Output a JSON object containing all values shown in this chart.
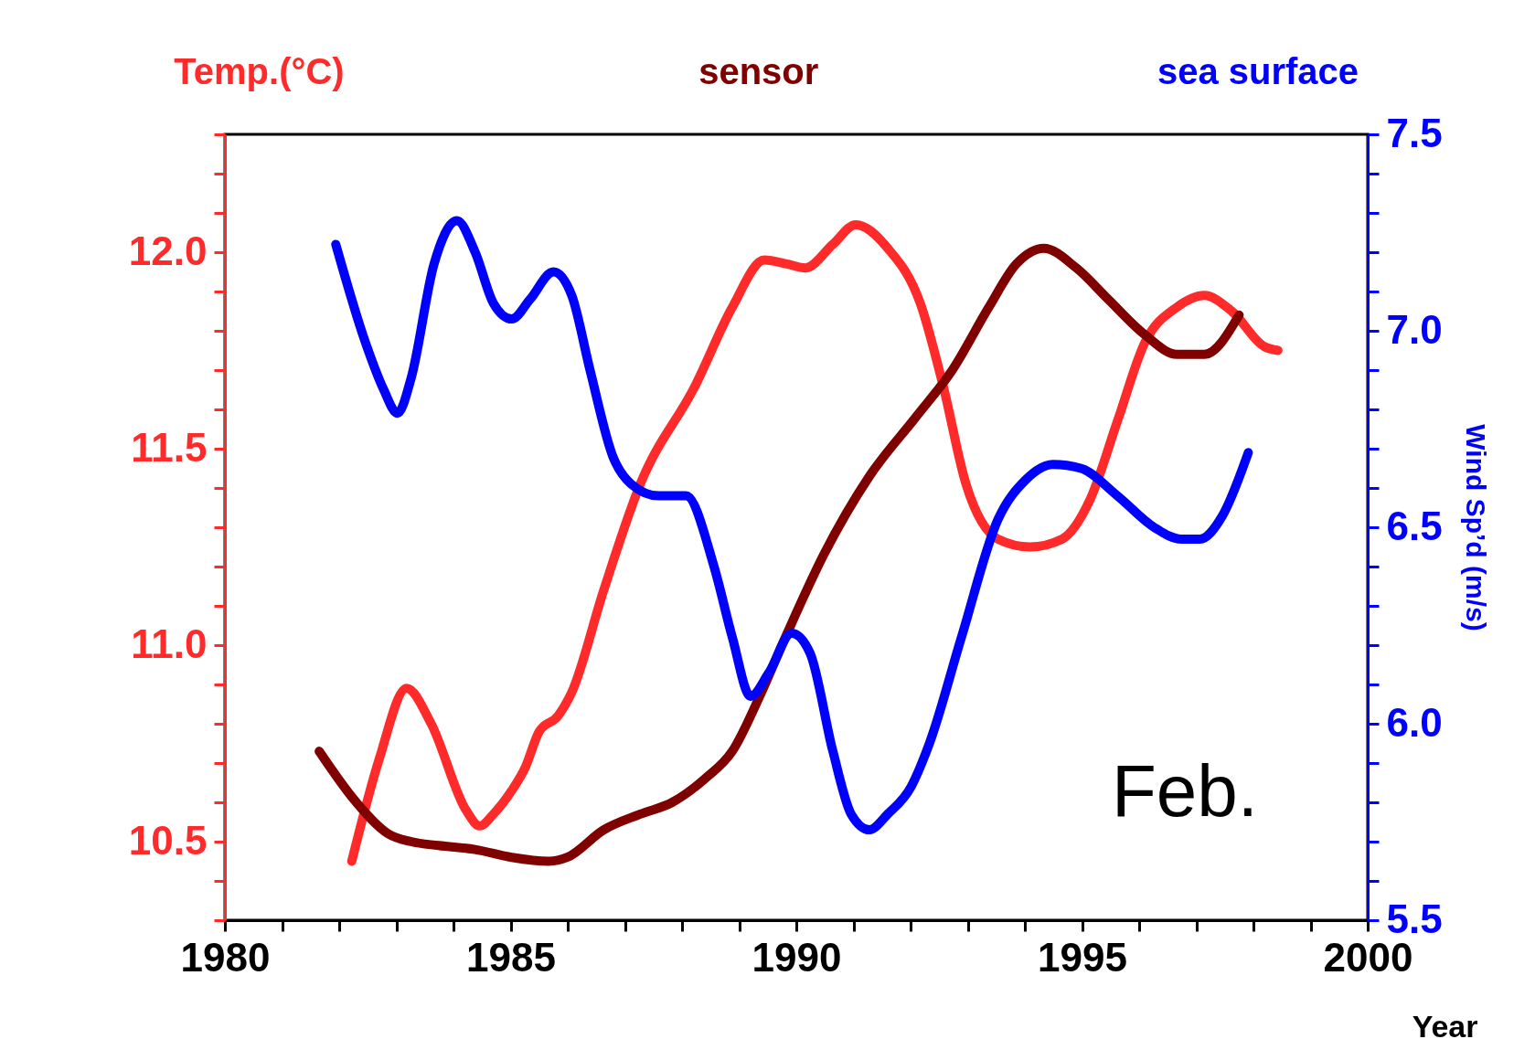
{
  "chart_data": {
    "type": "line",
    "xlabel": "Year",
    "y2label": "Wind Sp’d (m/s)",
    "annotations": [
      "Feb."
    ],
    "legend": "top",
    "line_style": "solid",
    "marker": "none",
    "grid": false,
    "xlim": [
      1980,
      2000
    ],
    "xticks": [
      1980,
      {
        "value": 1981,
        "label": null
      },
      {
        "value": 1982,
        "label": null
      },
      {
        "value": 1983,
        "label": null
      },
      {
        "value": 1984,
        "label": null
      },
      1985,
      {
        "value": 1986,
        "label": null
      },
      {
        "value": 1987,
        "label": null
      },
      {
        "value": 1988,
        "label": null
      },
      {
        "value": 1989,
        "label": null
      },
      1990,
      {
        "value": 1991,
        "label": null
      },
      {
        "value": 1992,
        "label": null
      },
      {
        "value": 1993,
        "label": null
      },
      {
        "value": 1994,
        "label": null
      },
      1995,
      {
        "value": 1996,
        "label": null
      },
      {
        "value": 1997,
        "label": null
      },
      {
        "value": 1998,
        "label": null
      },
      {
        "value": 1999,
        "label": null
      },
      2000
    ],
    "ylim": [
      10.3,
      12.3
    ],
    "yticks": [
      {
        "value": 10.3,
        "label": null
      },
      {
        "value": 10.4,
        "label": null
      },
      10.5,
      {
        "value": 10.6,
        "label": null
      },
      {
        "value": 10.7,
        "label": null
      },
      {
        "value": 10.8,
        "label": null
      },
      {
        "value": 10.9,
        "label": null
      },
      {
        "value": 11,
        "label": "11.0"
      },
      {
        "value": 11.1,
        "label": null
      },
      {
        "value": 11.2,
        "label": null
      },
      {
        "value": 11.3,
        "label": null
      },
      {
        "value": 11.4,
        "label": null
      },
      11.5,
      {
        "value": 11.6,
        "label": null
      },
      {
        "value": 11.7,
        "label": null
      },
      {
        "value": 11.8,
        "label": null
      },
      {
        "value": 11.9,
        "label": null
      },
      {
        "value": 12,
        "label": "12.0"
      },
      {
        "value": 12.1,
        "label": null
      },
      {
        "value": 12.2,
        "label": null
      },
      {
        "value": 12.3,
        "label": null
      }
    ],
    "y2lim": [
      5.5,
      7.5
    ],
    "y2ticks": [
      5.5,
      {
        "value": 5.6,
        "label": null
      },
      {
        "value": 5.7,
        "label": null
      },
      {
        "value": 5.8,
        "label": null
      },
      {
        "value": 5.9,
        "label": null
      },
      {
        "value": 6,
        "label": "6.0"
      },
      {
        "value": 6.1,
        "label": null
      },
      {
        "value": 6.2,
        "label": null
      },
      {
        "value": 6.3,
        "label": null
      },
      {
        "value": 6.4,
        "label": null
      },
      6.5,
      {
        "value": 6.6,
        "label": null
      },
      {
        "value": 6.7,
        "label": null
      },
      {
        "value": 6.8,
        "label": null
      },
      {
        "value": 6.9,
        "label": null
      },
      {
        "value": 7,
        "label": "7.0"
      },
      {
        "value": 7.1,
        "label": null
      },
      {
        "value": 7.2,
        "label": null
      },
      {
        "value": 7.3,
        "label": null
      },
      {
        "value": 7.4,
        "label": null
      },
      7.5
    ],
    "series": [
      {
        "name": "Temp.(°C)",
        "color": "#ff2a2a",
        "x": [
          1982.22,
          1982.7,
          1983.18,
          1983.61,
          1984.22,
          1984.46,
          1984.7,
          1985.02,
          1985.26,
          1985.5,
          1985.83,
          1986.07,
          1986.63,
          1987.27,
          1988.23,
          1988.88,
          1989.44,
          1989.84,
          1990.16,
          1990.64,
          1991.04,
          1991.6,
          1992.17,
          1992.57,
          1992.97,
          1993.53,
          1994.09,
          1994.65,
          1995.14,
          1995.62,
          1996.1,
          1996.66,
          1997.14,
          1997.62,
          1998.19,
          1998.43
        ],
        "values": [
          10.45,
          10.71,
          10.89,
          10.8,
          10.58,
          10.54,
          10.57,
          10.63,
          10.69,
          10.78,
          10.82,
          10.88,
          11.14,
          11.41,
          11.66,
          11.86,
          11.98,
          11.97,
          11.96,
          12.02,
          12.07,
          12.01,
          11.87,
          11.66,
          11.41,
          11.27,
          11.25,
          11.27,
          11.37,
          11.57,
          11.77,
          11.86,
          11.89,
          11.85,
          11.76,
          11.75
        ]
      },
      {
        "name": "sensor",
        "color": "#800000",
        "x": [
          1981.65,
          1982.3,
          1982.86,
          1983.26,
          1983.74,
          1984.38,
          1985.02,
          1985.67,
          1985.99,
          1986.63,
          1987.27,
          1987.83,
          1988.4,
          1988.88,
          1989.36,
          1989.84,
          1990.48,
          1991.28,
          1992.09,
          1992.73,
          1993.37,
          1993.85,
          1994.33,
          1994.9,
          1995.46,
          1996.1,
          1996.66,
          1997.14,
          1997.75
        ],
        "values": [
          10.73,
          10.6,
          10.52,
          10.5,
          10.49,
          10.48,
          10.46,
          10.45,
          10.46,
          10.53,
          10.57,
          10.6,
          10.66,
          10.73,
          10.87,
          11.03,
          11.23,
          11.43,
          11.58,
          11.7,
          11.86,
          11.97,
          12.01,
          11.96,
          11.88,
          11.79,
          11.74,
          11.74,
          11.84
        ]
      },
      {
        "name": "sea surface",
        "color": "#0000ff",
        "axis": "y2",
        "x": [
          1981.94,
          1982.46,
          1982.78,
          1983.02,
          1983.26,
          1983.66,
          1984.06,
          1984.38,
          1984.7,
          1985.02,
          1985.34,
          1985.75,
          1986.07,
          1986.39,
          1986.79,
          1987.11,
          1987.59,
          1988.07,
          1988.56,
          1988.88,
          1989.2,
          1989.52,
          1989.92,
          1990.24,
          1990.64,
          1990.96,
          1991.28,
          1991.6,
          1992.01,
          1992.33,
          1992.89,
          1993.53,
          1994.01,
          1994.49,
          1994.98,
          1995.62,
          1996.26,
          1996.74,
          1997.06,
          1997.46,
          1997.91
        ],
        "values": [
          7.22,
          6.97,
          6.85,
          6.79,
          6.88,
          7.17,
          7.28,
          7.2,
          7.07,
          7.03,
          7.08,
          7.15,
          7.09,
          6.9,
          6.68,
          6.61,
          6.58,
          6.58,
          6.4,
          6.22,
          6.07,
          6.13,
          6.23,
          6.18,
          5.93,
          5.77,
          5.73,
          5.77,
          5.84,
          5.95,
          6.22,
          6.52,
          6.62,
          6.66,
          6.65,
          6.58,
          6.5,
          6.47,
          6.47,
          6.53,
          6.69
        ]
      }
    ]
  }
}
